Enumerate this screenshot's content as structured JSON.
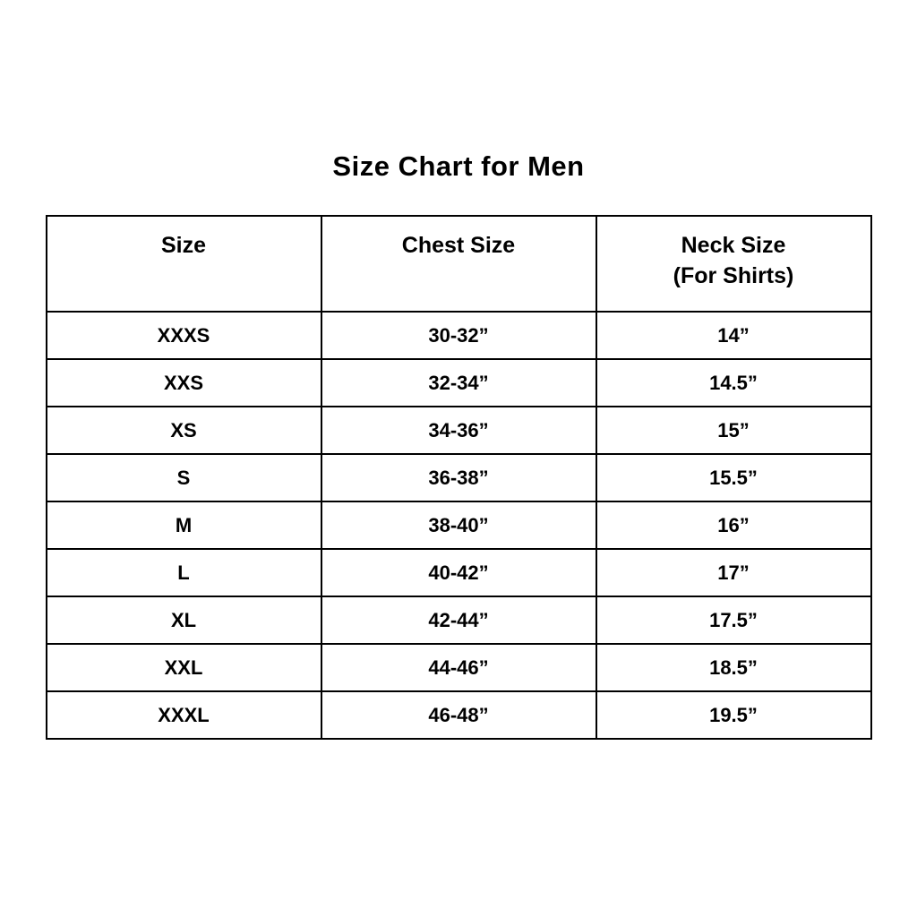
{
  "title": "Size Chart for Men",
  "chart_data": {
    "type": "table",
    "title": "Size Chart for Men",
    "columns": [
      {
        "line1": "Size",
        "line2": ""
      },
      {
        "line1": "Chest Size",
        "line2": ""
      },
      {
        "line1": "Neck Size",
        "line2": "(For Shirts)"
      }
    ],
    "rows": [
      [
        "XXXS",
        "30-32”",
        "14”"
      ],
      [
        "XXS",
        "32-34”",
        "14.5”"
      ],
      [
        "XS",
        "34-36”",
        "15”"
      ],
      [
        "S",
        "36-38”",
        "15.5”"
      ],
      [
        "M",
        "38-40”",
        "16”"
      ],
      [
        "L",
        "40-42”",
        "17”"
      ],
      [
        "XL",
        "42-44”",
        "17.5”"
      ],
      [
        "XXL",
        "44-46”",
        "18.5”"
      ],
      [
        "XXXL",
        "46-48”",
        "19.5”"
      ]
    ],
    "colors": {
      "text": "#000000",
      "border": "#000000",
      "background": "#ffffff"
    },
    "layout": {
      "grid": true,
      "header_rows": 1,
      "data_rows": 9
    }
  }
}
